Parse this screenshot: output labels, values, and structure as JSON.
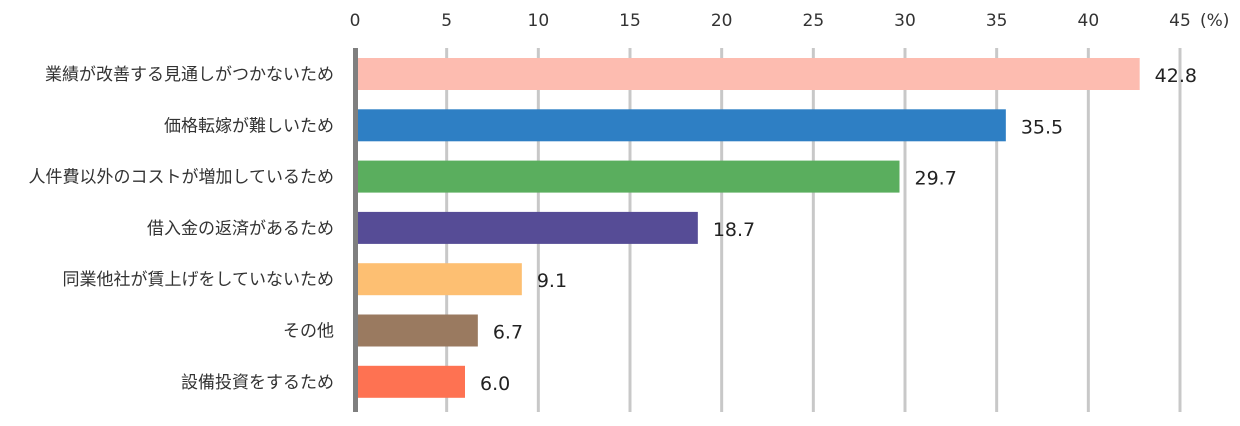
{
  "chart_data": {
    "type": "bar",
    "orientation": "horizontal",
    "unit": "(%)",
    "categories": [
      "業績が改善する見通しがつかないため",
      "価格転嫁が難しいため",
      "人件費以外のコストが増加しているため",
      "借入金の返済があるため",
      "同業他社が賃上げをしていないため",
      "その他",
      "設備投資をするため"
    ],
    "values": [
      42.8,
      35.5,
      29.7,
      18.7,
      9.1,
      6.7,
      6.0
    ],
    "value_labels": [
      "42.8",
      "35.5",
      "29.7",
      "18.7",
      "9.1",
      "6.7",
      "6.0"
    ],
    "colors": [
      "#fdbcb0",
      "#2e7fc4",
      "#5aae5e",
      "#564c96",
      "#fdbf72",
      "#9a7a60",
      "#fe7252"
    ],
    "xlim": [
      0,
      45
    ],
    "ticks": [
      0,
      5,
      10,
      15,
      20,
      25,
      30,
      35,
      40,
      45
    ],
    "tick_labels": [
      "0",
      "5",
      "10",
      "15",
      "20",
      "25",
      "30",
      "35",
      "40",
      "45"
    ],
    "grid": true,
    "axis_position": "top",
    "legend": "none"
  }
}
